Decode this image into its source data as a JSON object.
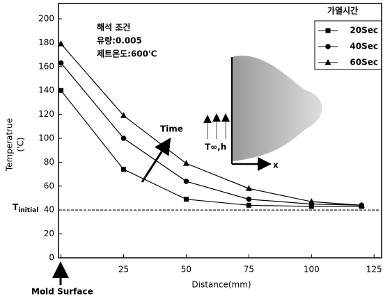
{
  "chart_data": {
    "type": "line",
    "x_label": "Distance(mm)",
    "y_label": [
      "Temperatrue",
      "('C)"
    ],
    "x": [
      0,
      25,
      50,
      75,
      100,
      120
    ],
    "series": [
      {
        "name": "20Sec",
        "color": "#000000",
        "marker": "square",
        "values": [
          140,
          74,
          49,
          44,
          43,
          43
        ]
      },
      {
        "name": "40Sec",
        "color": "#000000",
        "marker": "circle",
        "values": [
          163,
          100,
          64,
          49,
          45,
          44
        ]
      },
      {
        "name": "60Sec",
        "color": "#000000",
        "marker": "triangle",
        "values": [
          179,
          119,
          79,
          58,
          47,
          44
        ]
      }
    ],
    "legend_title": "가열시간",
    "legend": "upper right",
    "xlim": [
      -1,
      128
    ],
    "xticks": [
      0,
      25,
      50,
      75,
      100,
      125
    ],
    "ylim": [
      0,
      200
    ],
    "yticks": [
      0,
      20,
      40,
      60,
      80,
      100,
      120,
      140,
      160,
      180,
      200
    ],
    "reference_line": {
      "value": 40,
      "label": "T",
      "label_sub": "initial"
    },
    "annotations": {
      "conditions_title": "해석 조건",
      "flow": "유량:0.005",
      "jet_temp": "제트온도:600'C",
      "time": "Time",
      "heat": "T∞,h",
      "x_axis_symbol": "x",
      "mold_surface": "Mold Surface"
    }
  }
}
